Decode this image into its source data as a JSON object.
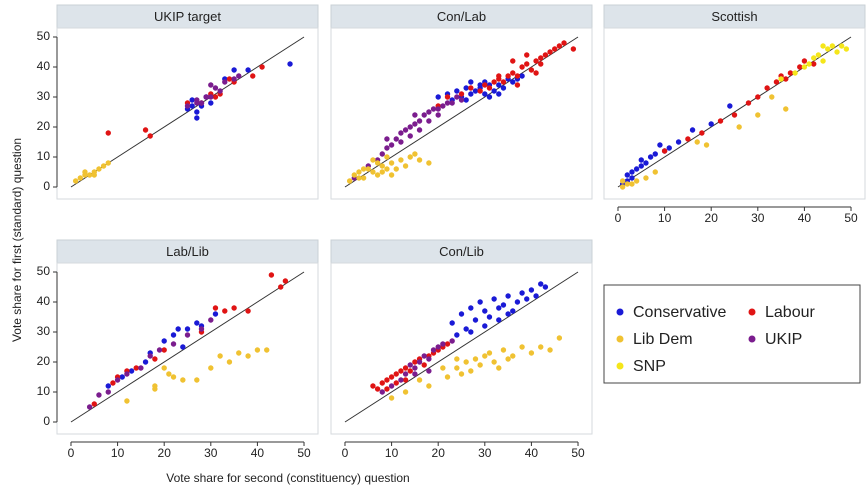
{
  "figure": {
    "x_label": "Vote share for second (constituency) question",
    "y_label": "Vote share for first (standard) question"
  },
  "chart_data": [
    {
      "type": "scatter",
      "title": "UKIP target",
      "xlim": [
        -3,
        53
      ],
      "ylim": [
        -4,
        53
      ],
      "yticks": [
        0,
        10,
        20,
        30,
        40,
        50
      ],
      "series": [
        {
          "name": "Conservative",
          "color": "#1a1ad6",
          "x": [
            25,
            26,
            27,
            27,
            28,
            30,
            33,
            35,
            38,
            47,
            29,
            26
          ],
          "y": [
            26,
            27,
            23,
            25,
            27,
            28,
            36,
            39,
            39,
            41,
            30,
            29
          ]
        },
        {
          "name": "Labour",
          "color": "#e01414",
          "x": [
            8,
            16,
            17,
            31,
            32,
            34,
            35,
            39,
            41,
            25,
            30,
            28
          ],
          "y": [
            18,
            19,
            17,
            30,
            31,
            36,
            35,
            37,
            40,
            28,
            31,
            28
          ]
        },
        {
          "name": "UKIP",
          "color": "#7b1d8e",
          "x": [
            25,
            27,
            28,
            29,
            30,
            31,
            32,
            33,
            35,
            36,
            27,
            30
          ],
          "y": [
            27,
            29,
            28,
            30,
            34,
            33,
            32,
            35,
            36,
            37,
            28,
            30
          ]
        },
        {
          "name": "Lib Dem",
          "color": "#f0c232",
          "x": [
            1,
            2,
            3,
            4,
            5,
            6,
            7,
            8,
            5,
            3
          ],
          "y": [
            2,
            3,
            5,
            4,
            5,
            6,
            7,
            8,
            4,
            4
          ]
        }
      ]
    },
    {
      "type": "scatter",
      "title": "Con/Lab",
      "xlim": [
        -3,
        53
      ],
      "ylim": [
        -4,
        53
      ],
      "series": [
        {
          "name": "Conservative",
          "color": "#1a1ad6",
          "x": [
            20,
            22,
            24,
            25,
            26,
            27,
            28,
            29,
            30,
            31,
            32,
            33,
            34,
            35,
            36,
            37,
            38,
            27,
            29,
            31,
            23,
            33,
            26,
            30
          ],
          "y": [
            30,
            31,
            32,
            30,
            33,
            31,
            32,
            33,
            31,
            34,
            32,
            34,
            33,
            36,
            35,
            36,
            37,
            35,
            34,
            30,
            29,
            31,
            29,
            35
          ]
        },
        {
          "name": "Labour",
          "color": "#e01414",
          "x": [
            20,
            22,
            25,
            27,
            29,
            30,
            31,
            32,
            33,
            34,
            35,
            36,
            37,
            38,
            39,
            40,
            41,
            42,
            43,
            44,
            45,
            46,
            47,
            49,
            36,
            39,
            42,
            33,
            37,
            41
          ],
          "y": [
            27,
            30,
            31,
            33,
            32,
            34,
            33,
            35,
            36,
            35,
            37,
            38,
            37,
            40,
            41,
            39,
            42,
            43,
            44,
            45,
            46,
            47,
            48,
            46,
            42,
            44,
            41,
            37,
            34,
            38
          ]
        },
        {
          "name": "UKIP",
          "color": "#7b1d8e",
          "x": [
            2,
            5,
            7,
            8,
            9,
            10,
            11,
            12,
            13,
            14,
            15,
            16,
            17,
            18,
            19,
            20,
            21,
            22,
            23,
            24,
            25,
            14,
            16,
            18,
            12,
            20,
            9,
            15
          ],
          "y": [
            3,
            7,
            9,
            11,
            13,
            14,
            16,
            18,
            19,
            20,
            21,
            22,
            24,
            25,
            26,
            26,
            27,
            28,
            28,
            30,
            29,
            17,
            19,
            22,
            15,
            24,
            16,
            24
          ]
        },
        {
          "name": "Lib Dem",
          "color": "#f0c232",
          "x": [
            1,
            2,
            3,
            4,
            5,
            6,
            7,
            8,
            9,
            10,
            11,
            12,
            13,
            14,
            15,
            16,
            18,
            9,
            4,
            3,
            8,
            10,
            7,
            6
          ],
          "y": [
            2,
            4,
            5,
            3,
            6,
            5,
            4,
            7,
            6,
            8,
            6,
            9,
            7,
            10,
            11,
            9,
            8,
            10,
            6,
            3,
            5,
            4,
            8,
            9
          ]
        }
      ]
    },
    {
      "type": "scatter",
      "title": "Scottish",
      "xlim": [
        -3,
        53
      ],
      "ylim": [
        -4,
        53
      ],
      "xticks": [
        0,
        10,
        20,
        30,
        40,
        50
      ],
      "series": [
        {
          "name": "Conservative",
          "color": "#1a1ad6",
          "x": [
            1,
            2,
            2,
            3,
            4,
            5,
            6,
            7,
            8,
            9,
            10,
            11,
            13,
            16,
            20,
            24,
            3,
            5
          ],
          "y": [
            1,
            2,
            4,
            5,
            6,
            7,
            8,
            10,
            11,
            14,
            12,
            13,
            15,
            19,
            21,
            27,
            3,
            9
          ]
        },
        {
          "name": "Labour",
          "color": "#e01414",
          "x": [
            10,
            15,
            18,
            22,
            25,
            28,
            30,
            32,
            34,
            36,
            37,
            39,
            40,
            42,
            35
          ],
          "y": [
            12,
            16,
            18,
            22,
            24,
            28,
            30,
            33,
            35,
            36,
            38,
            40,
            42,
            41,
            37
          ]
        },
        {
          "name": "Lib Dem",
          "color": "#f0c232",
          "x": [
            1,
            2,
            3,
            1,
            4,
            6,
            8,
            17,
            19,
            26,
            30,
            36,
            33
          ],
          "y": [
            0,
            1,
            1,
            2,
            2,
            3,
            5,
            15,
            14,
            20,
            24,
            26,
            30
          ]
        },
        {
          "name": "SNP",
          "color": "#f5e61a",
          "x": [
            35,
            38,
            40,
            42,
            43,
            44,
            45,
            46,
            47,
            48,
            49,
            41,
            44
          ],
          "y": [
            36,
            38,
            40,
            43,
            44,
            42,
            46,
            47,
            45,
            47,
            46,
            41,
            47
          ]
        }
      ]
    },
    {
      "type": "scatter",
      "title": "Lab/Lib",
      "xlim": [
        -3,
        53
      ],
      "ylim": [
        -4,
        53
      ],
      "xticks": [
        0,
        10,
        20,
        30,
        40,
        50
      ],
      "yticks": [
        0,
        10,
        20,
        30,
        40,
        50
      ],
      "series": [
        {
          "name": "Conservative",
          "color": "#1a1ad6",
          "x": [
            8,
            11,
            13,
            16,
            17,
            20,
            22,
            23,
            25,
            27,
            28,
            31,
            24
          ],
          "y": [
            12,
            15,
            17,
            20,
            23,
            27,
            29,
            31,
            31,
            33,
            32,
            36,
            25
          ]
        },
        {
          "name": "Labour",
          "color": "#e01414",
          "x": [
            5,
            9,
            10,
            12,
            14,
            18,
            20,
            31,
            33,
            35,
            38,
            43,
            45,
            46,
            28
          ],
          "y": [
            6,
            13,
            15,
            17,
            18,
            21,
            24,
            38,
            37,
            38,
            37,
            49,
            45,
            47,
            30
          ]
        },
        {
          "name": "UKIP",
          "color": "#7b1d8e",
          "x": [
            4,
            6,
            8,
            10,
            12,
            15,
            17,
            19,
            22,
            25,
            28,
            30
          ],
          "y": [
            5,
            9,
            10,
            14,
            16,
            18,
            22,
            24,
            26,
            29,
            31,
            34
          ]
        },
        {
          "name": "Lib Dem",
          "color": "#f0c232",
          "x": [
            12,
            18,
            18,
            21,
            22,
            24,
            27,
            30,
            32,
            34,
            36,
            38,
            40,
            42,
            20
          ],
          "y": [
            7,
            12,
            11,
            16,
            15,
            14,
            14,
            18,
            22,
            20,
            23,
            22,
            24,
            24,
            18
          ]
        }
      ]
    },
    {
      "type": "scatter",
      "title": "Con/Lib",
      "xlim": [
        -3,
        53
      ],
      "ylim": [
        -4,
        53
      ],
      "xticks": [
        0,
        10,
        20,
        30,
        40,
        50
      ],
      "series": [
        {
          "name": "Conservative",
          "color": "#1a1ad6",
          "x": [
            23,
            25,
            26,
            27,
            28,
            29,
            30,
            31,
            32,
            33,
            34,
            35,
            36,
            37,
            38,
            39,
            40,
            41,
            42,
            43,
            24,
            30,
            33,
            27,
            35
          ],
          "y": [
            33,
            36,
            31,
            38,
            34,
            40,
            37,
            35,
            41,
            38,
            39,
            42,
            37,
            40,
            43,
            41,
            44,
            42,
            46,
            45,
            29,
            32,
            34,
            30,
            36
          ]
        },
        {
          "name": "Labour",
          "color": "#e01414",
          "x": [
            6,
            7,
            8,
            9,
            10,
            11,
            12,
            13,
            14,
            15,
            16,
            17,
            18,
            19,
            20,
            21,
            22,
            13,
            9,
            11
          ],
          "y": [
            12,
            11,
            13,
            14,
            15,
            16,
            17,
            18,
            17,
            20,
            21,
            19,
            22,
            23,
            24,
            25,
            26,
            14,
            11,
            13
          ]
        },
        {
          "name": "UKIP",
          "color": "#7b1d8e",
          "x": [
            8,
            10,
            12,
            13,
            14,
            15,
            16,
            17,
            18,
            19,
            20,
            21,
            23,
            15,
            18
          ],
          "y": [
            10,
            12,
            14,
            16,
            19,
            18,
            20,
            22,
            21,
            24,
            25,
            26,
            27,
            16,
            17
          ]
        },
        {
          "name": "Lib Dem",
          "color": "#f0c232",
          "x": [
            10,
            13,
            16,
            18,
            22,
            24,
            25,
            26,
            27,
            28,
            29,
            30,
            31,
            32,
            33,
            34,
            35,
            36,
            38,
            40,
            42,
            44,
            46,
            21,
            24
          ],
          "y": [
            8,
            10,
            14,
            12,
            15,
            18,
            16,
            20,
            17,
            21,
            19,
            22,
            23,
            20,
            18,
            24,
            21,
            22,
            25,
            23,
            25,
            24,
            28,
            18,
            21
          ]
        }
      ]
    }
  ]
}
